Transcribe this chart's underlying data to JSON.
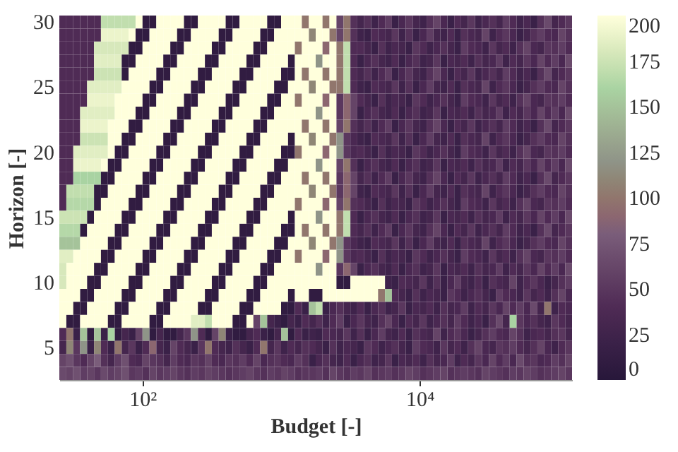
{
  "chart_data": {
    "type": "heatmap",
    "xlabel": "Budget [-]",
    "ylabel": "Horizon [-]",
    "log": "x",
    "xlim": [
      25.1,
      125900
    ],
    "xticks": [
      {
        "value": 100,
        "label": "10²"
      },
      {
        "value": 10000,
        "label": "10⁴"
      }
    ],
    "clim": [
      0,
      200
    ],
    "cticks": [
      0,
      25,
      50,
      75,
      100,
      125,
      150,
      175,
      200
    ],
    "x": [
      26.6,
      29.9,
      33.5,
      37.6,
      42.2,
      47.3,
      53.1,
      59.6,
      66.8,
      75.0,
      84.1,
      94.4,
      106,
      119,
      133,
      150,
      168,
      188,
      211,
      237,
      266,
      299,
      335,
      376,
      422,
      473,
      531,
      596,
      668,
      750,
      841,
      944,
      1060,
      1190,
      1330,
      1500,
      1680,
      1880,
      2110,
      2370,
      2660,
      2990,
      3350,
      3760,
      4220,
      4730,
      5310,
      5960,
      6680,
      7500,
      8410,
      9440,
      10600,
      11900,
      13300,
      15000,
      16800,
      18800,
      21100,
      23700,
      26600,
      29900,
      33500,
      37600,
      42200,
      47300,
      53100,
      59600,
      66800,
      75000,
      84100,
      94400,
      106000,
      119000
    ],
    "y_categories": [
      "30",
      null,
      null,
      null,
      null,
      "25",
      null,
      null,
      null,
      null,
      "20",
      null,
      null,
      null,
      null,
      "15",
      null,
      null,
      null,
      null,
      "10",
      null,
      null,
      null,
      null,
      "5",
      null,
      null
    ],
    "cells": [
      [
        40,
        40,
        40,
        40,
        40,
        40,
        170,
        170,
        170,
        170,
        170,
        200,
        10,
        10,
        200,
        200,
        200,
        200,
        10,
        10,
        200,
        200,
        200,
        200,
        10,
        10,
        200,
        200,
        200,
        200,
        10,
        10,
        200,
        200,
        200,
        100,
        200,
        200,
        100,
        200,
        60,
        100,
        45,
        30,
        45,
        25,
        40,
        55,
        20,
        35,
        50,
        30,
        25,
        45,
        60,
        35,
        20,
        40,
        30,
        50,
        25,
        35,
        45,
        30,
        55,
        40,
        25,
        35,
        20,
        45,
        65,
        30,
        40,
        50
      ],
      [
        40,
        40,
        40,
        40,
        40,
        40,
        190,
        190,
        190,
        190,
        200,
        10,
        10,
        200,
        200,
        200,
        200,
        10,
        10,
        200,
        200,
        200,
        200,
        10,
        10,
        200,
        200,
        200,
        200,
        10,
        10,
        200,
        200,
        200,
        200,
        200,
        110,
        200,
        200,
        100,
        60,
        100,
        45,
        25,
        20,
        40,
        35,
        30,
        50,
        25,
        45,
        20,
        35,
        55,
        30,
        25,
        40,
        20,
        45,
        35,
        30,
        60,
        25,
        40,
        50,
        35,
        20,
        30,
        45,
        55,
        40,
        35,
        60,
        45
      ],
      [
        40,
        40,
        40,
        40,
        40,
        180,
        180,
        180,
        180,
        180,
        10,
        10,
        200,
        200,
        200,
        200,
        10,
        10,
        200,
        200,
        200,
        200,
        10,
        10,
        200,
        200,
        200,
        200,
        10,
        10,
        200,
        200,
        200,
        200,
        100,
        200,
        200,
        200,
        90,
        200,
        100,
        170,
        40,
        40,
        30,
        20,
        45,
        25,
        35,
        30,
        20,
        50,
        40,
        25,
        35,
        45,
        30,
        20,
        55,
        40,
        35,
        25,
        50,
        30,
        40,
        25,
        45,
        60,
        35,
        30,
        50,
        45,
        55,
        40
      ],
      [
        40,
        40,
        40,
        40,
        40,
        185,
        185,
        185,
        185,
        10,
        10,
        200,
        200,
        200,
        200,
        10,
        10,
        200,
        200,
        200,
        200,
        10,
        10,
        200,
        200,
        200,
        200,
        10,
        10,
        200,
        200,
        200,
        200,
        10,
        200,
        200,
        200,
        120,
        200,
        200,
        100,
        170,
        40,
        20,
        35,
        45,
        30,
        25,
        40,
        20,
        35,
        45,
        25,
        30,
        50,
        20,
        35,
        30,
        40,
        25,
        45,
        30,
        35,
        55,
        25,
        40,
        30,
        50,
        35,
        60,
        40,
        55,
        35,
        65
      ],
      [
        40,
        40,
        40,
        40,
        40,
        175,
        175,
        175,
        175,
        10,
        200,
        200,
        200,
        200,
        10,
        10,
        200,
        200,
        200,
        200,
        10,
        10,
        200,
        200,
        200,
        200,
        10,
        10,
        200,
        200,
        200,
        200,
        10,
        10,
        200,
        100,
        200,
        200,
        100,
        200,
        100,
        170,
        40,
        30,
        45,
        25,
        40,
        55,
        20,
        35,
        50,
        30,
        25,
        45,
        60,
        35,
        20,
        40,
        30,
        50,
        25,
        35,
        45,
        30,
        55,
        40,
        25,
        35,
        20,
        45,
        65,
        30,
        40,
        50
      ],
      [
        40,
        40,
        40,
        40,
        185,
        185,
        185,
        185,
        185,
        200,
        200,
        200,
        200,
        10,
        10,
        200,
        200,
        200,
        200,
        10,
        10,
        200,
        200,
        200,
        200,
        10,
        10,
        200,
        200,
        200,
        200,
        10,
        10,
        200,
        200,
        200,
        110,
        200,
        200,
        100,
        100,
        170,
        40,
        25,
        20,
        40,
        35,
        30,
        50,
        25,
        45,
        20,
        35,
        55,
        30,
        25,
        40,
        20,
        45,
        35,
        30,
        60,
        25,
        40,
        50,
        35,
        20,
        30,
        45,
        55,
        40,
        35,
        60,
        45
      ],
      [
        40,
        40,
        40,
        40,
        190,
        190,
        190,
        190,
        200,
        200,
        200,
        200,
        10,
        10,
        200,
        200,
        200,
        200,
        10,
        10,
        200,
        200,
        200,
        200,
        10,
        10,
        200,
        200,
        200,
        200,
        10,
        10,
        200,
        200,
        100,
        200,
        200,
        200,
        90,
        200,
        50,
        90,
        60,
        40,
        30,
        20,
        45,
        25,
        35,
        30,
        20,
        50,
        40,
        25,
        35,
        45,
        30,
        20,
        55,
        40,
        35,
        25,
        50,
        30,
        40,
        25,
        45,
        60,
        35,
        30,
        50,
        45,
        55,
        40
      ],
      [
        40,
        40,
        40,
        185,
        185,
        185,
        185,
        185,
        200,
        200,
        200,
        10,
        10,
        200,
        200,
        200,
        200,
        10,
        10,
        200,
        200,
        200,
        200,
        10,
        10,
        200,
        200,
        200,
        200,
        10,
        10,
        200,
        200,
        200,
        200,
        200,
        200,
        120,
        200,
        200,
        50,
        90,
        60,
        20,
        35,
        45,
        30,
        25,
        40,
        20,
        35,
        45,
        25,
        30,
        50,
        20,
        35,
        30,
        40,
        25,
        45,
        30,
        35,
        55,
        25,
        40,
        30,
        50,
        35,
        60,
        40,
        55,
        35,
        65
      ],
      [
        40,
        40,
        40,
        190,
        190,
        190,
        190,
        200,
        200,
        200,
        10,
        10,
        200,
        200,
        200,
        200,
        10,
        10,
        200,
        200,
        200,
        200,
        10,
        10,
        200,
        200,
        200,
        200,
        10,
        10,
        200,
        200,
        200,
        200,
        200,
        100,
        200,
        200,
        100,
        200,
        60,
        100,
        45,
        30,
        45,
        25,
        40,
        55,
        20,
        35,
        50,
        30,
        25,
        45,
        60,
        35,
        20,
        40,
        30,
        50,
        25,
        35,
        45,
        30,
        55,
        40,
        25,
        35,
        20,
        45,
        65,
        30,
        40,
        50
      ],
      [
        40,
        40,
        40,
        175,
        175,
        175,
        175,
        200,
        200,
        10,
        10,
        200,
        200,
        200,
        200,
        10,
        10,
        200,
        200,
        200,
        200,
        10,
        10,
        200,
        200,
        200,
        200,
        10,
        10,
        200,
        200,
        200,
        200,
        10,
        200,
        200,
        110,
        200,
        200,
        100,
        120,
        50,
        35,
        25,
        20,
        40,
        35,
        30,
        50,
        25,
        45,
        20,
        35,
        55,
        30,
        25,
        40,
        20,
        45,
        35,
        30,
        60,
        25,
        40,
        50,
        35,
        20,
        30,
        45,
        55,
        40,
        35,
        60,
        45
      ],
      [
        40,
        40,
        185,
        185,
        185,
        185,
        185,
        200,
        10,
        10,
        200,
        200,
        200,
        200,
        10,
        10,
        200,
        200,
        200,
        200,
        10,
        10,
        200,
        200,
        200,
        200,
        10,
        10,
        200,
        200,
        200,
        200,
        10,
        10,
        100,
        200,
        200,
        200,
        90,
        200,
        120,
        50,
        35,
        40,
        30,
        20,
        45,
        25,
        35,
        30,
        20,
        50,
        40,
        25,
        35,
        45,
        30,
        20,
        55,
        40,
        35,
        25,
        50,
        30,
        40,
        25,
        45,
        60,
        35,
        30,
        50,
        45,
        55,
        40
      ],
      [
        40,
        40,
        190,
        190,
        190,
        190,
        200,
        10,
        10,
        200,
        200,
        200,
        200,
        10,
        10,
        200,
        200,
        200,
        200,
        10,
        10,
        200,
        200,
        200,
        200,
        10,
        10,
        200,
        200,
        200,
        200,
        10,
        10,
        200,
        200,
        200,
        200,
        120,
        200,
        200,
        60,
        100,
        45,
        20,
        35,
        45,
        30,
        25,
        40,
        20,
        35,
        45,
        25,
        30,
        50,
        20,
        35,
        30,
        40,
        25,
        45,
        30,
        35,
        55,
        25,
        40,
        30,
        50,
        35,
        60,
        40,
        55,
        35,
        65
      ],
      [
        40,
        40,
        160,
        160,
        160,
        160,
        10,
        10,
        200,
        200,
        200,
        200,
        10,
        10,
        200,
        200,
        200,
        200,
        10,
        10,
        200,
        200,
        200,
        200,
        10,
        10,
        200,
        200,
        200,
        200,
        10,
        10,
        200,
        200,
        200,
        100,
        200,
        200,
        100,
        200,
        50,
        90,
        60,
        30,
        45,
        25,
        40,
        55,
        20,
        35,
        50,
        30,
        25,
        45,
        60,
        35,
        20,
        40,
        30,
        50,
        25,
        35,
        45,
        30,
        55,
        40,
        25,
        35,
        20,
        45,
        65,
        30,
        40,
        50
      ],
      [
        40,
        170,
        170,
        170,
        170,
        10,
        10,
        200,
        200,
        200,
        200,
        10,
        10,
        200,
        200,
        200,
        200,
        10,
        10,
        200,
        200,
        200,
        200,
        10,
        10,
        200,
        200,
        200,
        200,
        10,
        10,
        200,
        200,
        200,
        200,
        200,
        110,
        200,
        200,
        100,
        50,
        90,
        60,
        25,
        20,
        40,
        35,
        30,
        50,
        25,
        45,
        20,
        35,
        55,
        30,
        25,
        40,
        20,
        45,
        35,
        30,
        60,
        25,
        40,
        50,
        35,
        20,
        30,
        45,
        55,
        40,
        35,
        60,
        45
      ],
      [
        40,
        165,
        165,
        165,
        165,
        10,
        200,
        200,
        200,
        200,
        10,
        10,
        200,
        200,
        200,
        200,
        10,
        10,
        200,
        200,
        200,
        200,
        10,
        10,
        200,
        200,
        200,
        200,
        10,
        10,
        200,
        200,
        200,
        200,
        100,
        200,
        200,
        200,
        90,
        200,
        60,
        100,
        45,
        40,
        30,
        20,
        45,
        25,
        35,
        30,
        20,
        50,
        40,
        25,
        35,
        45,
        30,
        20,
        55,
        40,
        35,
        25,
        50,
        30,
        40,
        25,
        45,
        60,
        35,
        30,
        50,
        45,
        55,
        40
      ],
      [
        175,
        175,
        175,
        175,
        10,
        200,
        200,
        200,
        200,
        10,
        10,
        200,
        200,
        200,
        200,
        10,
        10,
        200,
        200,
        200,
        200,
        10,
        10,
        200,
        200,
        200,
        200,
        10,
        10,
        200,
        200,
        200,
        200,
        10,
        200,
        200,
        200,
        120,
        200,
        200,
        100,
        170,
        40,
        20,
        35,
        45,
        30,
        25,
        40,
        20,
        35,
        45,
        25,
        30,
        50,
        20,
        35,
        30,
        40,
        25,
        45,
        30,
        35,
        55,
        25,
        40,
        30,
        50,
        35,
        60,
        40,
        55,
        35,
        65
      ],
      [
        165,
        165,
        165,
        10,
        200,
        200,
        200,
        200,
        10,
        10,
        200,
        200,
        200,
        200,
        10,
        10,
        200,
        200,
        200,
        200,
        10,
        10,
        200,
        200,
        200,
        200,
        10,
        10,
        200,
        200,
        200,
        200,
        10,
        10,
        200,
        100,
        200,
        200,
        100,
        200,
        100,
        170,
        40,
        30,
        45,
        25,
        40,
        55,
        20,
        35,
        50,
        30,
        25,
        45,
        60,
        35,
        20,
        40,
        30,
        50,
        25,
        35,
        45,
        30,
        55,
        40,
        25,
        35,
        20,
        45,
        65,
        30,
        40,
        50
      ],
      [
        150,
        150,
        150,
        200,
        200,
        200,
        200,
        10,
        10,
        200,
        200,
        200,
        200,
        10,
        10,
        200,
        200,
        200,
        200,
        10,
        10,
        200,
        200,
        200,
        200,
        10,
        10,
        200,
        200,
        200,
        200,
        10,
        10,
        200,
        200,
        200,
        110,
        200,
        200,
        100,
        120,
        50,
        35,
        25,
        20,
        40,
        35,
        30,
        50,
        25,
        45,
        20,
        35,
        55,
        30,
        25,
        40,
        20,
        45,
        35,
        30,
        60,
        25,
        40,
        50,
        35,
        20,
        30,
        45,
        55,
        40,
        35,
        60,
        45
      ],
      [
        185,
        185,
        200,
        200,
        200,
        200,
        10,
        10,
        200,
        200,
        200,
        200,
        10,
        10,
        200,
        200,
        200,
        200,
        10,
        10,
        200,
        200,
        200,
        200,
        10,
        10,
        200,
        200,
        200,
        200,
        10,
        10,
        200,
        200,
        100,
        200,
        200,
        200,
        90,
        200,
        120,
        50,
        35,
        40,
        30,
        20,
        45,
        25,
        35,
        30,
        20,
        50,
        40,
        25,
        35,
        45,
        30,
        20,
        55,
        40,
        35,
        25,
        50,
        30,
        40,
        25,
        45,
        60,
        35,
        30,
        50,
        45,
        55,
        40
      ],
      [
        180,
        200,
        200,
        200,
        200,
        10,
        10,
        200,
        200,
        200,
        200,
        10,
        10,
        200,
        200,
        200,
        200,
        10,
        10,
        200,
        200,
        200,
        200,
        10,
        10,
        200,
        200,
        200,
        200,
        10,
        10,
        200,
        200,
        200,
        200,
        200,
        200,
        120,
        200,
        200,
        50,
        90,
        60,
        20,
        35,
        45,
        30,
        25,
        40,
        20,
        35,
        45,
        25,
        30,
        50,
        20,
        35,
        30,
        40,
        25,
        45,
        30,
        35,
        55,
        25,
        40,
        30,
        50,
        35,
        60,
        40,
        55,
        35,
        65
      ],
      [
        180,
        200,
        200,
        200,
        10,
        10,
        200,
        200,
        200,
        200,
        10,
        10,
        200,
        200,
        200,
        200,
        10,
        10,
        200,
        200,
        200,
        200,
        10,
        10,
        200,
        200,
        200,
        200,
        10,
        10,
        200,
        200,
        200,
        200,
        200,
        200,
        200,
        200,
        200,
        200,
        10,
        10,
        200,
        200,
        200,
        200,
        200,
        25,
        20,
        40,
        35,
        30,
        50,
        25,
        45,
        20,
        35,
        55,
        30,
        25,
        40,
        20,
        45,
        35,
        30,
        60,
        25,
        40,
        50,
        35,
        20,
        30,
        45,
        55
      ],
      [
        200,
        200,
        200,
        10,
        10,
        200,
        200,
        200,
        200,
        10,
        10,
        200,
        200,
        200,
        200,
        10,
        10,
        200,
        200,
        200,
        200,
        10,
        10,
        200,
        200,
        200,
        200,
        10,
        10,
        200,
        200,
        200,
        200,
        10,
        200,
        200,
        10,
        10,
        200,
        200,
        200,
        200,
        200,
        200,
        200,
        200,
        100,
        150,
        40,
        30,
        20,
        45,
        25,
        35,
        30,
        20,
        50,
        40,
        25,
        35,
        45,
        30,
        20,
        55,
        40,
        35,
        25,
        50,
        30,
        40,
        25,
        45,
        60,
        35
      ],
      [
        200,
        200,
        10,
        10,
        200,
        200,
        200,
        200,
        10,
        10,
        200,
        200,
        200,
        200,
        10,
        10,
        200,
        200,
        200,
        200,
        10,
        10,
        200,
        200,
        200,
        200,
        10,
        10,
        200,
        200,
        200,
        200,
        10,
        10,
        40,
        20,
        150,
        170,
        20,
        35,
        45,
        30,
        25,
        40,
        20,
        35,
        45,
        25,
        30,
        50,
        20,
        35,
        30,
        40,
        25,
        45,
        30,
        35,
        55,
        25,
        40,
        30,
        50,
        35,
        60,
        40,
        55,
        35,
        65,
        30,
        100,
        25,
        40,
        35
      ],
      [
        200,
        10,
        10,
        200,
        200,
        200,
        200,
        10,
        10,
        200,
        200,
        200,
        200,
        10,
        10,
        200,
        200,
        200,
        200,
        185,
        185,
        170,
        200,
        200,
        200,
        10,
        10,
        200,
        60,
        150,
        30,
        20,
        10,
        30,
        20,
        40,
        30,
        45,
        25,
        40,
        55,
        20,
        35,
        50,
        30,
        25,
        45,
        60,
        35,
        20,
        40,
        30,
        50,
        25,
        35,
        45,
        30,
        55,
        40,
        25,
        35,
        20,
        45,
        65,
        30,
        160,
        50,
        35,
        45,
        30,
        25,
        50,
        40,
        30
      ],
      [
        40,
        100,
        20,
        150,
        10,
        150,
        20,
        160,
        10,
        30,
        20,
        60,
        120,
        10,
        30,
        10,
        10,
        30,
        50,
        120,
        40,
        10,
        60,
        110,
        20,
        10,
        10,
        30,
        40,
        20,
        10,
        30,
        150,
        10,
        40,
        20,
        25,
        20,
        40,
        35,
        30,
        50,
        25,
        45,
        20,
        35,
        55,
        30,
        25,
        40,
        20,
        45,
        35,
        30,
        60,
        25,
        40,
        50,
        35,
        20,
        30,
        45,
        55,
        40,
        35,
        60,
        45,
        25,
        35,
        40,
        30,
        45,
        50,
        30
      ],
      [
        30,
        110,
        50,
        120,
        20,
        110,
        40,
        20,
        100,
        30,
        50,
        20,
        40,
        90,
        30,
        20,
        60,
        40,
        30,
        20,
        50,
        100,
        40,
        30,
        25,
        45,
        30,
        20,
        40,
        100,
        30,
        50,
        25,
        40,
        30,
        45,
        40,
        30,
        20,
        45,
        25,
        35,
        30,
        20,
        50,
        40,
        25,
        35,
        45,
        30,
        20,
        55,
        40,
        35,
        25,
        50,
        30,
        40,
        25,
        45,
        60,
        35,
        30,
        50,
        45,
        55,
        40,
        30,
        45,
        60,
        35,
        25,
        40,
        50
      ],
      [
        60,
        70,
        50,
        40,
        60,
        80,
        45,
        30,
        55,
        70,
        40,
        35,
        60,
        50,
        45,
        30,
        55,
        40,
        35,
        50,
        45,
        60,
        40,
        35,
        50,
        45,
        55,
        40,
        60,
        35,
        45,
        50,
        40,
        35,
        55,
        45,
        20,
        35,
        45,
        30,
        25,
        40,
        20,
        35,
        45,
        25,
        30,
        50,
        20,
        35,
        30,
        40,
        25,
        45,
        30,
        35,
        55,
        25,
        40,
        30,
        50,
        35,
        60,
        40,
        55,
        35,
        65,
        45,
        50,
        35,
        40,
        55,
        45,
        60
      ],
      [
        65,
        60,
        70,
        55,
        60,
        50,
        65,
        55,
        60,
        70,
        50,
        55,
        45,
        60,
        50,
        55,
        60,
        50,
        45,
        55,
        50,
        60,
        55,
        50,
        45,
        50,
        55,
        60,
        50,
        45,
        55,
        50,
        60,
        55,
        45,
        50,
        50,
        55,
        45,
        60,
        50,
        45,
        55,
        50,
        60,
        45,
        50,
        55,
        45,
        50,
        60,
        55,
        45,
        50,
        55,
        60,
        45,
        50,
        55,
        50,
        45,
        60,
        55,
        50,
        45,
        55,
        50,
        60,
        55,
        45,
        50,
        55,
        60,
        50
      ]
    ]
  }
}
